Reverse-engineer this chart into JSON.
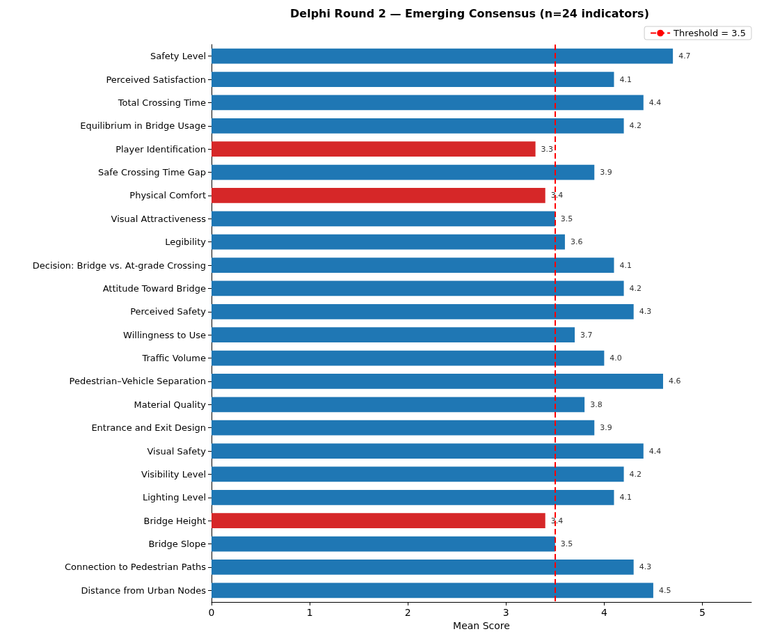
{
  "chart_data": {
    "type": "bar",
    "orientation": "horizontal",
    "title": "Delphi Round 2 — Emerging Consensus (n=24 indicators)",
    "xlabel": "Mean Score",
    "categories": [
      "Safety Level",
      "Perceived Satisfaction",
      "Total Crossing Time",
      "Equilibrium in Bridge Usage",
      "Player Identification",
      "Safe Crossing Time Gap",
      "Physical Comfort",
      "Visual Attractiveness",
      "Legibility",
      "Decision: Bridge vs. At-grade Crossing",
      "Attitude Toward Bridge",
      "Perceived Safety",
      "Willingness to Use",
      "Traffic Volume",
      "Pedestrian–Vehicle Separation",
      "Material Quality",
      "Entrance and Exit Design",
      "Visual Safety",
      "Visibility Level",
      "Lighting Level",
      "Bridge Height",
      "Bridge Slope",
      "Connection to Pedestrian Paths",
      "Distance from Urban Nodes"
    ],
    "values": [
      4.7,
      4.1,
      4.4,
      4.2,
      3.3,
      3.9,
      3.4,
      3.5,
      3.6,
      4.1,
      4.2,
      4.3,
      3.7,
      4.0,
      4.6,
      3.8,
      3.9,
      4.4,
      4.2,
      4.1,
      3.4,
      3.5,
      4.3,
      4.5
    ],
    "colors": [
      "#1f77b4",
      "#1f77b4",
      "#1f77b4",
      "#1f77b4",
      "#d62728",
      "#1f77b4",
      "#d62728",
      "#1f77b4",
      "#1f77b4",
      "#1f77b4",
      "#1f77b4",
      "#1f77b4",
      "#1f77b4",
      "#1f77b4",
      "#1f77b4",
      "#1f77b4",
      "#1f77b4",
      "#1f77b4",
      "#1f77b4",
      "#1f77b4",
      "#d62728",
      "#1f77b4",
      "#1f77b4",
      "#1f77b4"
    ],
    "value_labels": [
      "4.7",
      "4.1",
      "4.4",
      "4.2",
      "3.3",
      "3.9",
      "3.4",
      "3.5",
      "3.6",
      "4.1",
      "4.2",
      "4.3",
      "3.7",
      "4.0",
      "4.6",
      "3.8",
      "3.9",
      "4.4",
      "4.2",
      "4.1",
      "3.4",
      "3.5",
      "4.3",
      "4.5"
    ],
    "xlim": [
      0,
      5.5
    ],
    "xticks": [
      0,
      1,
      2,
      3,
      4,
      5
    ],
    "grid": false,
    "legend": "top right",
    "ref_lines": [
      {
        "axis": "x",
        "value": 3.5,
        "label": "Threshold = 3.5",
        "color": "#ff0000",
        "line_style": "dashed"
      }
    ]
  }
}
